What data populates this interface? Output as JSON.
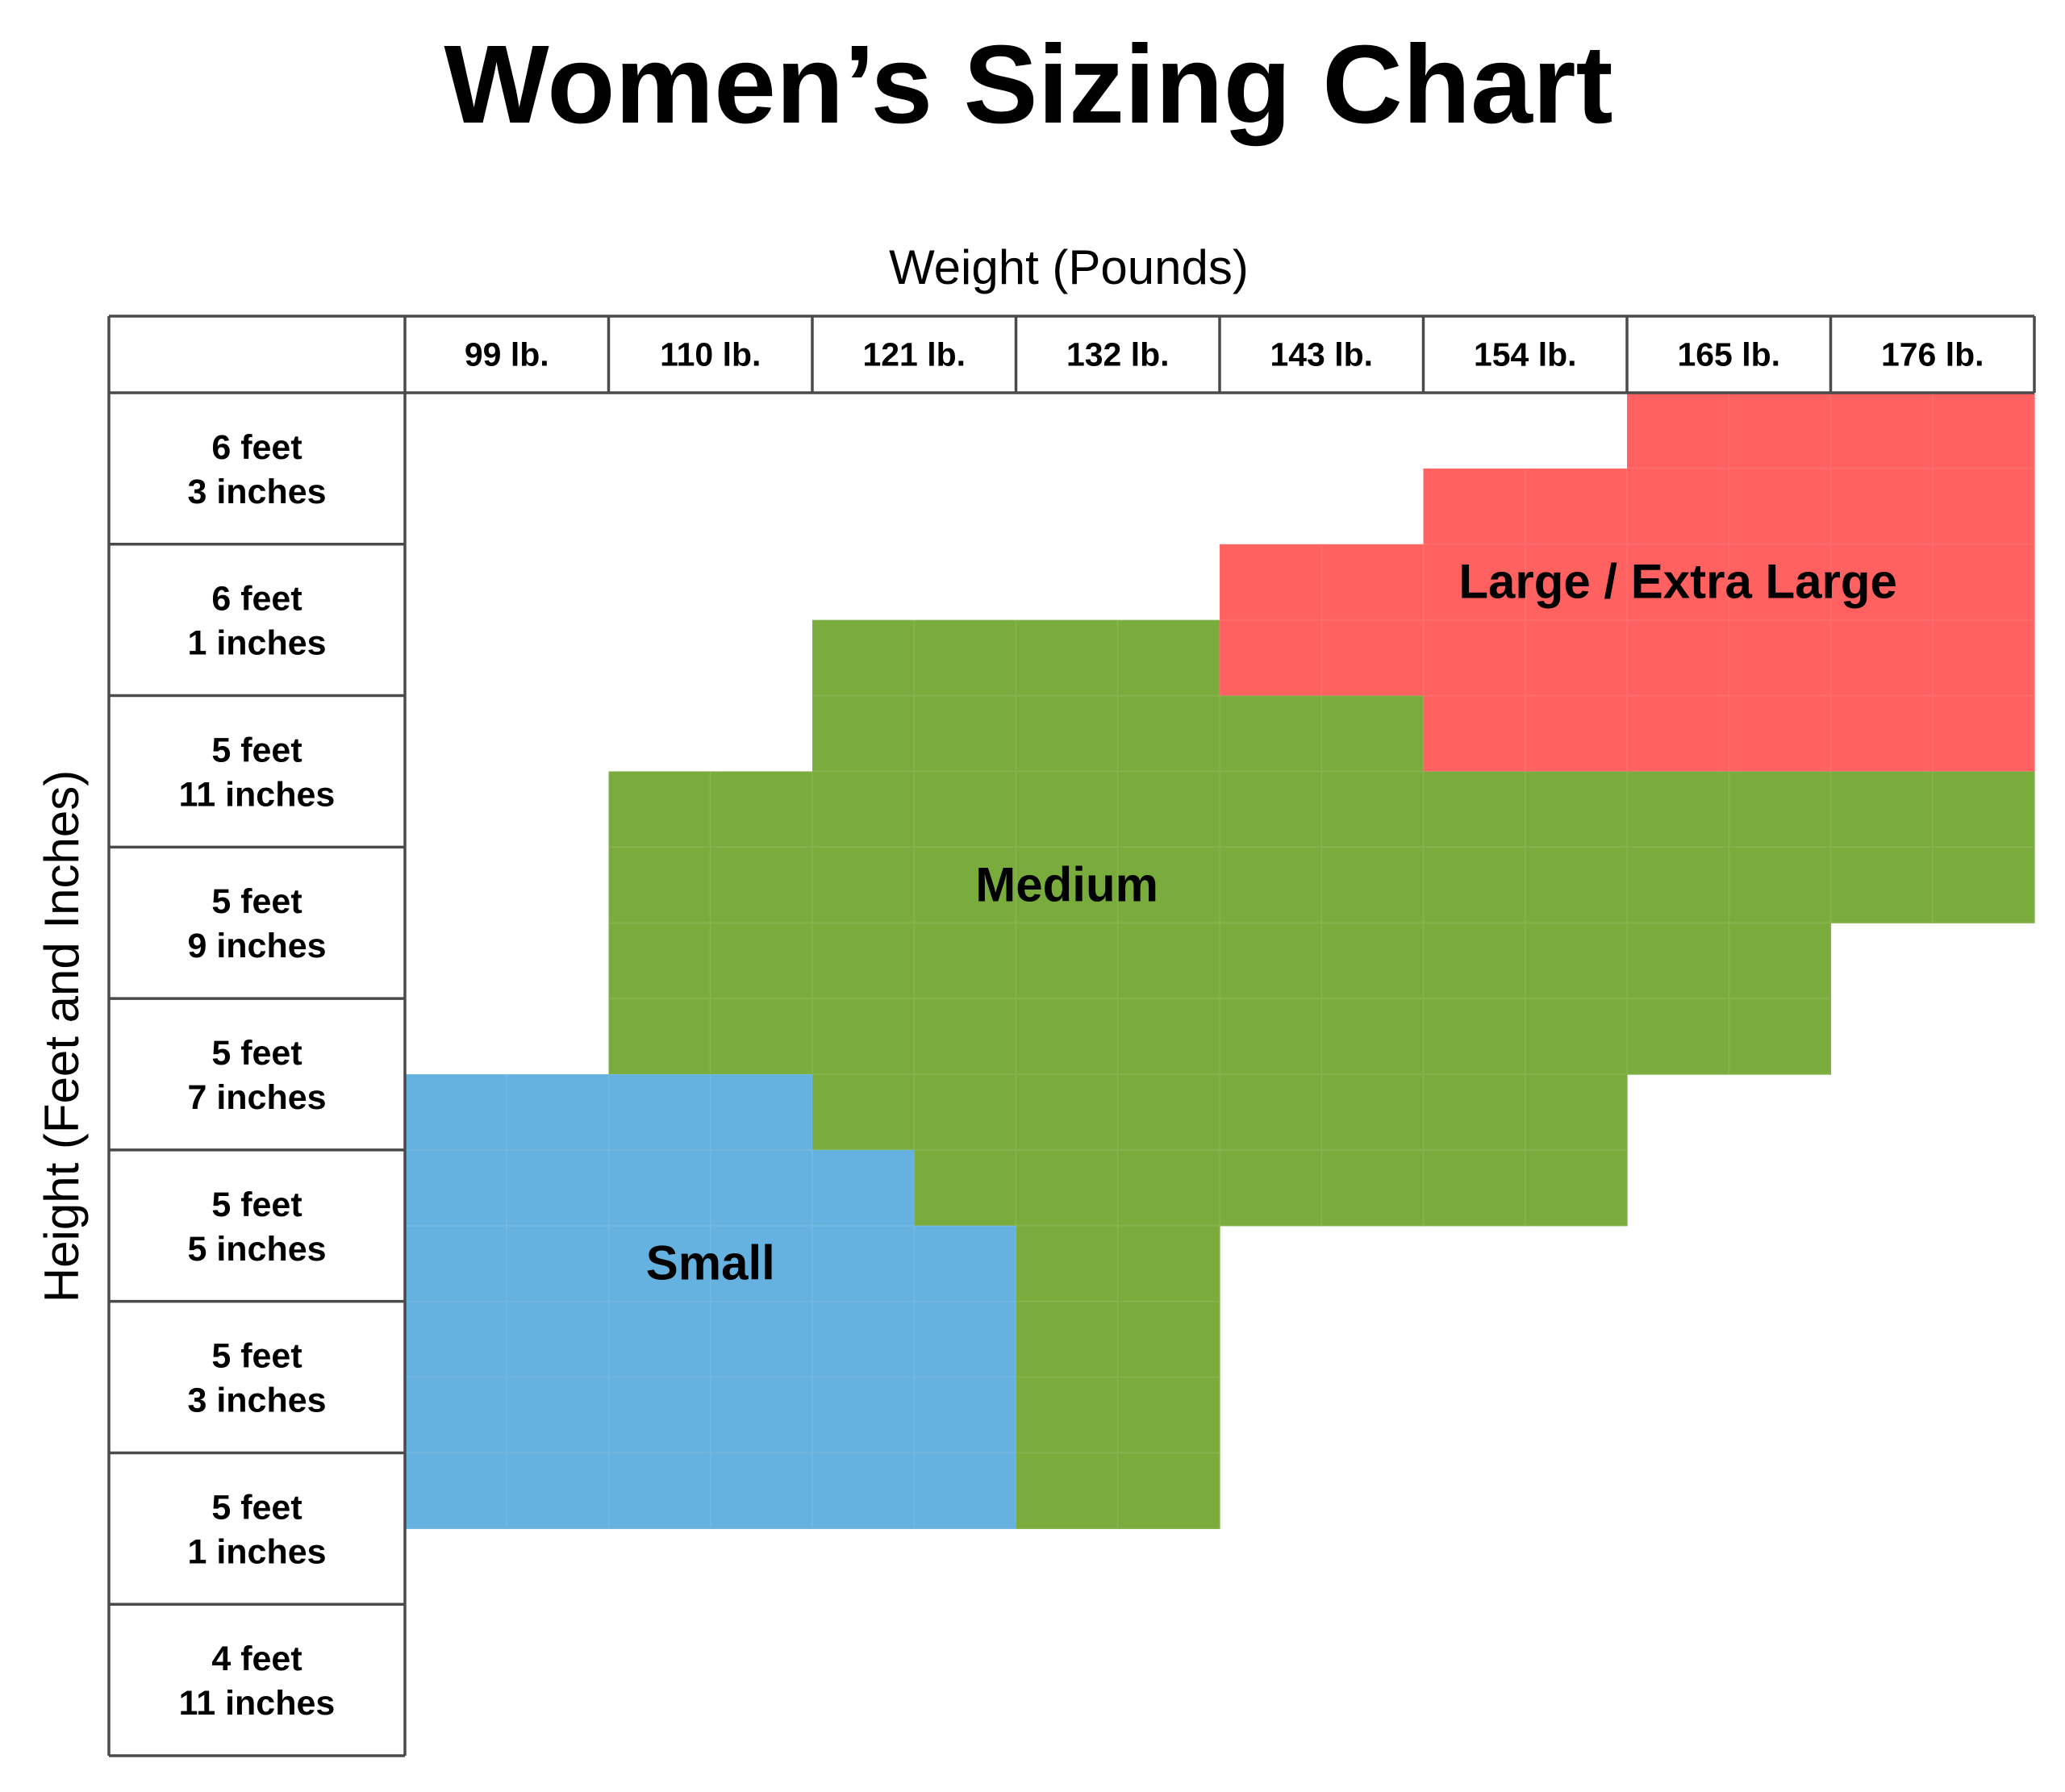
{
  "chart_data": {
    "type": "heatmap",
    "title": "Women’s Sizing Chart",
    "xlabel": "Weight (Pounds)",
    "ylabel": "Height (Feet and Inches)",
    "columns": [
      "99 lb.",
      "110 lb.",
      "121 lb.",
      "132 lb.",
      "143 lb.",
      "154 lb.",
      "165 lb.",
      "176 lb."
    ],
    "rows": [
      {
        "feet": "6 feet",
        "inches": "3 inches"
      },
      {
        "feet": "6 feet",
        "inches": "1 inches"
      },
      {
        "feet": "5 feet",
        "inches": "11 inches"
      },
      {
        "feet": "5 feet",
        "inches": "9 inches"
      },
      {
        "feet": "5 feet",
        "inches": "7 inches"
      },
      {
        "feet": "5 feet",
        "inches": "5 inches"
      },
      {
        "feet": "5 feet",
        "inches": "3 inches"
      },
      {
        "feet": "5 feet",
        "inches": "1 inches"
      },
      {
        "feet": "4 feet",
        "inches": "11 inches"
      }
    ],
    "sizes": {
      "S": {
        "label": "Small",
        "color": "#65b1df"
      },
      "M": {
        "label": "Medium",
        "color": "#7aac3d"
      },
      "L": {
        "label": "Large / Extra Large",
        "color": "#ff6060"
      }
    },
    "grid": [
      "............LLLL",
      "..........LLLLLL",
      "........LLLLLLLL",
      "....MMMMLLLLLLLL",
      "....MMMMMMLLLLLL",
      "..MMMMMMMMMMMMMM",
      "..MMMMMMMMMMMMMM",
      "..MMMMMMMMMMMM..",
      "..MMMMMMMMMMMM..",
      "SSSSMMMMMMMM....",
      "SSSSSMMMMMMM....",
      "SSSSSSMM........",
      "SSSSSSMM........",
      "SSSSSSMM........",
      "SSSSSSMM........"
    ]
  }
}
